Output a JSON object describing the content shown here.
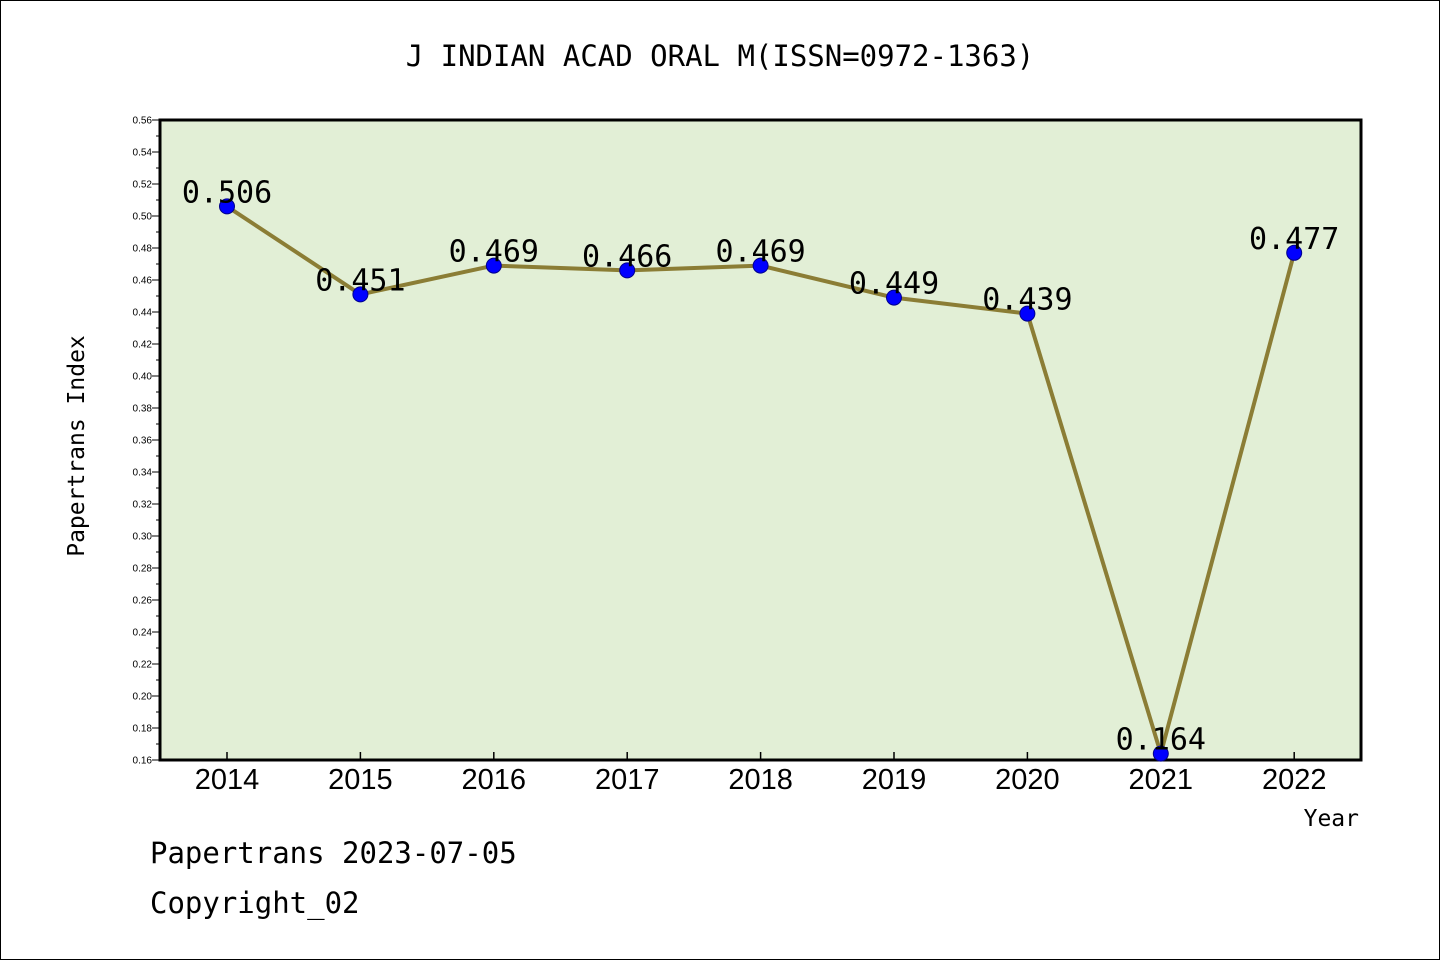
{
  "chart_data": {
    "type": "line",
    "title": "J INDIAN ACAD ORAL M(ISSN=0972-1363)",
    "xlabel": "Year",
    "ylabel": "Papertrans Index",
    "categories": [
      "2014",
      "2015",
      "2016",
      "2017",
      "2018",
      "2019",
      "2020",
      "2021",
      "2022"
    ],
    "series": [
      {
        "values": [
          0.506,
          0.451,
          0.469,
          0.466,
          0.469,
          0.449,
          0.439,
          0.164,
          0.477
        ],
        "labels": [
          "0.506",
          "0.451",
          "0.469",
          "0.466",
          "0.469",
          "0.449",
          "0.439",
          "0.164",
          "0.477"
        ]
      }
    ],
    "ylim": [
      0.16,
      0.56
    ],
    "yticks": [
      "0.16",
      "0.18",
      "0.20",
      "0.22",
      "0.24",
      "0.26",
      "0.28",
      "0.30",
      "0.32",
      "0.34",
      "0.36",
      "0.38",
      "0.40",
      "0.42",
      "0.44",
      "0.46",
      "0.48",
      "0.50",
      "0.52",
      "0.54",
      "0.56"
    ],
    "grid": false,
    "legend": "none",
    "colors": {
      "plot_background": "#e2efd6",
      "line": "#8b7d35",
      "marker": "#0000ff"
    }
  },
  "footer": {
    "date_line": "Papertrans 2023-07-05",
    "copyright": "Copyright_02"
  }
}
